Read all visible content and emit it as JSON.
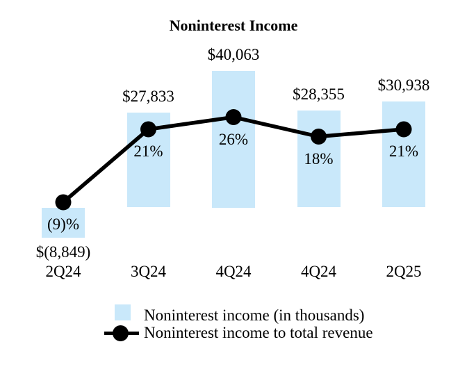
{
  "title": "Noninterest Income",
  "chart_data": {
    "type": "bar",
    "subtype": "bar-line-combo",
    "title": "Noninterest Income",
    "xlabel": "",
    "ylabel": "",
    "grid": false,
    "axes_shown": false,
    "legend_position": "bottom",
    "categories": [
      "2Q24",
      "3Q24",
      "4Q24",
      "4Q24",
      "2Q25"
    ],
    "series": [
      {
        "name": "Noninterest income (in thousands)",
        "type": "bar",
        "values": [
          -8849,
          27833,
          40063,
          28355,
          30938
        ],
        "data_labels": [
          "$(8,849)",
          "$27,833",
          "$40,063",
          "$28,355",
          "$30,938"
        ],
        "color": "#C9E8FA"
      },
      {
        "name": "Noninterest income to total revenue",
        "type": "line",
        "unit": "%",
        "values": [
          -9,
          21,
          26,
          18,
          21
        ],
        "data_labels": [
          "(9)%",
          "21%",
          "26%",
          "18%",
          "21%"
        ],
        "color": "#000000",
        "marker": "filled-circle"
      }
    ]
  },
  "legend": {
    "items": [
      {
        "label": "Noninterest income (in thousands)",
        "swatch": "bar-square"
      },
      {
        "label": "Noninterest income to total revenue",
        "swatch": "line-dot"
      }
    ]
  },
  "colors": {
    "background": "#FFFFFF",
    "bar_fill": "#C9E8FA",
    "line": "#000000",
    "text": "#000000"
  }
}
